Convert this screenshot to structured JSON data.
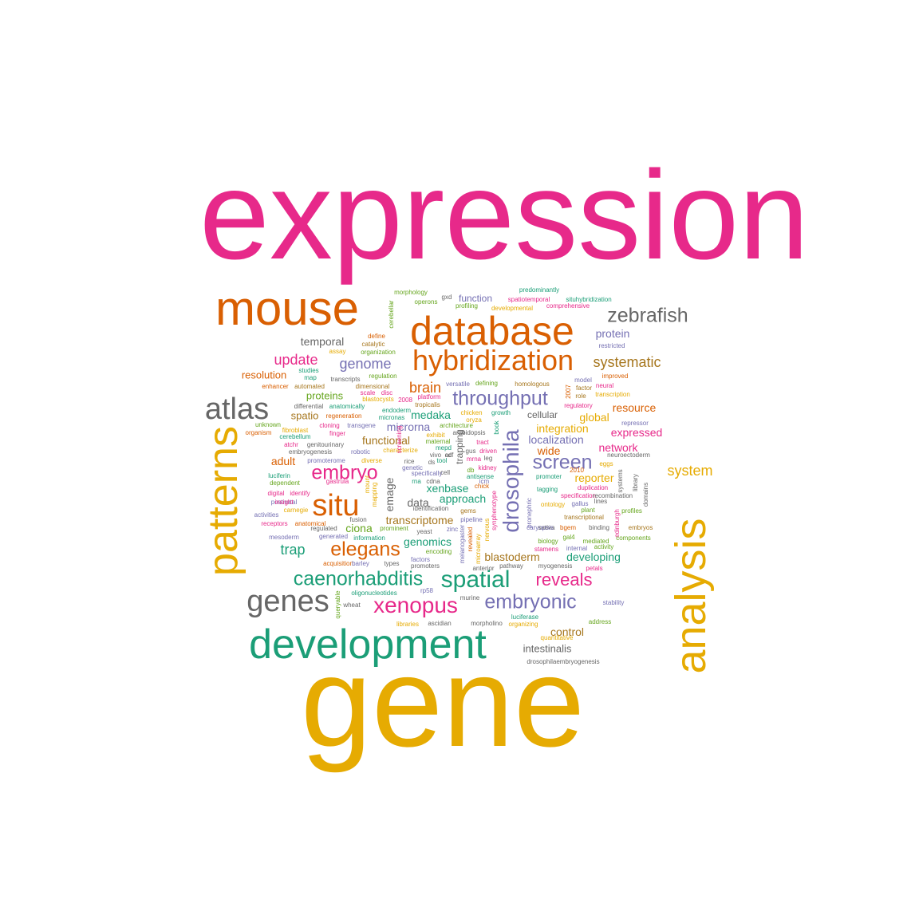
{
  "colors": {
    "magenta": "#e7298a",
    "orange": "#d95f02",
    "gold": "#e6ab02",
    "green": "#1b9e77",
    "purple": "#7570b3",
    "gray": "#666666",
    "olive": "#66a61e",
    "brown": "#a6761d"
  },
  "words": [
    {
      "text": "expression",
      "color": "magenta"
    },
    {
      "text": "gene",
      "color": "gold"
    },
    {
      "text": "mouse",
      "color": "orange"
    },
    {
      "text": "database",
      "color": "orange"
    },
    {
      "text": "hybridization",
      "color": "orange"
    },
    {
      "text": "zebrafish",
      "color": "gray"
    },
    {
      "text": "patterns",
      "color": "gold"
    },
    {
      "text": "analysis",
      "color": "gold"
    },
    {
      "text": "development",
      "color": "green"
    },
    {
      "text": "atlas",
      "color": "gray"
    },
    {
      "text": "situ",
      "color": "orange"
    },
    {
      "text": "genes",
      "color": "gray"
    },
    {
      "text": "xenopus",
      "color": "magenta"
    },
    {
      "text": "spatial",
      "color": "green"
    },
    {
      "text": "caenorhabditis",
      "color": "green"
    },
    {
      "text": "embryonic",
      "color": "purple"
    },
    {
      "text": "drosophila",
      "color": "purple"
    },
    {
      "text": "throughput",
      "color": "purple"
    },
    {
      "text": "screen",
      "color": "purple"
    },
    {
      "text": "embryo",
      "color": "magenta"
    },
    {
      "text": "elegans",
      "color": "orange"
    },
    {
      "text": "reveals",
      "color": "magenta"
    },
    {
      "text": "genome",
      "color": "purple"
    },
    {
      "text": "update",
      "color": "magenta"
    },
    {
      "text": "systematic",
      "color": "brown"
    },
    {
      "text": "brain",
      "color": "orange"
    },
    {
      "text": "trap",
      "color": "green"
    },
    {
      "text": "system",
      "color": "gold"
    },
    {
      "text": "resource",
      "color": "orange"
    },
    {
      "text": "expressed",
      "color": "magenta"
    },
    {
      "text": "protein",
      "color": "purple"
    },
    {
      "text": "temporal",
      "color": "gray"
    },
    {
      "text": "resolution",
      "color": "orange"
    },
    {
      "text": "proteins",
      "color": "olive"
    },
    {
      "text": "spatio",
      "color": "brown"
    },
    {
      "text": "medaka",
      "color": "green"
    },
    {
      "text": "microrna",
      "color": "purple"
    },
    {
      "text": "functional",
      "color": "brown"
    },
    {
      "text": "adult",
      "color": "orange"
    },
    {
      "text": "emage",
      "color": "gray"
    },
    {
      "text": "localization",
      "color": "purple"
    },
    {
      "text": "integration",
      "color": "gold"
    },
    {
      "text": "global",
      "color": "gold"
    },
    {
      "text": "network",
      "color": "magenta"
    },
    {
      "text": "wide",
      "color": "orange"
    },
    {
      "text": "reporter",
      "color": "gold"
    },
    {
      "text": "xenbase",
      "color": "green"
    },
    {
      "text": "approach",
      "color": "green"
    },
    {
      "text": "data",
      "color": "gray"
    },
    {
      "text": "transcriptome",
      "color": "brown"
    },
    {
      "text": "ciona",
      "color": "olive"
    },
    {
      "text": "genomics",
      "color": "green"
    },
    {
      "text": "blastoderm",
      "color": "brown"
    },
    {
      "text": "developing",
      "color": "green"
    },
    {
      "text": "control",
      "color": "brown"
    },
    {
      "text": "intestinalis",
      "color": "gray"
    },
    {
      "text": "function",
      "color": "purple"
    },
    {
      "text": "cellular",
      "color": "gray"
    },
    {
      "text": "trapping",
      "color": "gray"
    },
    {
      "text": "morphology",
      "color": "olive"
    },
    {
      "text": "gxd",
      "color": "gray"
    },
    {
      "text": "predominantly",
      "color": "green"
    },
    {
      "text": "operons",
      "color": "olive"
    },
    {
      "text": "profiling",
      "color": "olive"
    },
    {
      "text": "spatiotemporal",
      "color": "magenta"
    },
    {
      "text": "situhybridization",
      "color": "green"
    },
    {
      "text": "developmental",
      "color": "gold"
    },
    {
      "text": "comprehensive",
      "color": "magenta"
    },
    {
      "text": "cerebellar",
      "color": "olive"
    },
    {
      "text": "define",
      "color": "orange"
    },
    {
      "text": "catalytic",
      "color": "brown"
    },
    {
      "text": "organization",
      "color": "olive"
    },
    {
      "text": "assay",
      "color": "gold"
    },
    {
      "text": "restricted",
      "color": "purple"
    },
    {
      "text": "studies",
      "color": "green"
    },
    {
      "text": "map",
      "color": "green"
    },
    {
      "text": "transcripts",
      "color": "gray"
    },
    {
      "text": "regulation",
      "color": "olive"
    },
    {
      "text": "enhancer",
      "color": "orange"
    },
    {
      "text": "automated",
      "color": "brown"
    },
    {
      "text": "dimensional",
      "color": "brown"
    },
    {
      "text": "scale",
      "color": "magenta"
    },
    {
      "text": "disc",
      "color": "magenta"
    },
    {
      "text": "versatile",
      "color": "purple"
    },
    {
      "text": "defining",
      "color": "olive"
    },
    {
      "text": "homologous",
      "color": "brown"
    },
    {
      "text": "model",
      "color": "purple"
    },
    {
      "text": "improved",
      "color": "orange"
    },
    {
      "text": "factor",
      "color": "brown"
    },
    {
      "text": "neural",
      "color": "magenta"
    },
    {
      "text": "role",
      "color": "brown"
    },
    {
      "text": "transcription",
      "color": "gold"
    },
    {
      "text": "2007",
      "color": "orange"
    },
    {
      "text": "regulatory",
      "color": "magenta"
    },
    {
      "text": "differential",
      "color": "gray"
    },
    {
      "text": "anatomically",
      "color": "green"
    },
    {
      "text": "blastocysts",
      "color": "gold"
    },
    {
      "text": "2008",
      "color": "magenta"
    },
    {
      "text": "platform",
      "color": "magenta"
    },
    {
      "text": "tropicalis",
      "color": "brown"
    },
    {
      "text": "endoderm",
      "color": "green"
    },
    {
      "text": "regeneration",
      "color": "orange"
    },
    {
      "text": "micronas",
      "color": "green"
    },
    {
      "text": "chicken",
      "color": "gold"
    },
    {
      "text": "oryza",
      "color": "gold"
    },
    {
      "text": "growth",
      "color": "green"
    },
    {
      "text": "book",
      "color": "green"
    },
    {
      "text": "repressor",
      "color": "purple"
    },
    {
      "text": "unknown",
      "color": "olive"
    },
    {
      "text": "organism",
      "color": "orange"
    },
    {
      "text": "fibroblast",
      "color": "gold"
    },
    {
      "text": "cerebellum",
      "color": "green"
    },
    {
      "text": "cloning",
      "color": "magenta"
    },
    {
      "text": "finger",
      "color": "magenta"
    },
    {
      "text": "transgene",
      "color": "purple"
    },
    {
      "text": "architecture",
      "color": "olive"
    },
    {
      "text": "exhibit",
      "color": "gold"
    },
    {
      "text": "maternal",
      "color": "olive"
    },
    {
      "text": "arabidopsis",
      "color": "gray"
    },
    {
      "text": "atchr",
      "color": "magenta"
    },
    {
      "text": "genitourinary",
      "color": "gray"
    },
    {
      "text": "embryogenesis",
      "color": "gray"
    },
    {
      "text": "robotic",
      "color": "purple"
    },
    {
      "text": "characterize",
      "color": "gold"
    },
    {
      "text": "tract",
      "color": "magenta"
    },
    {
      "text": "gus",
      "color": "gray"
    },
    {
      "text": "driven",
      "color": "magenta"
    },
    {
      "text": "leg",
      "color": "gray"
    },
    {
      "text": "promoterome",
      "color": "purple"
    },
    {
      "text": "diverse",
      "color": "gold"
    },
    {
      "text": "rice",
      "color": "gray"
    },
    {
      "text": "vivo",
      "color": "gray"
    },
    {
      "text": "cdf",
      "color": "gray"
    },
    {
      "text": "mrna",
      "color": "magenta"
    },
    {
      "text": "neuroectoderm",
      "color": "gray"
    },
    {
      "text": "eggs",
      "color": "gold"
    },
    {
      "text": "luciferin",
      "color": "green"
    },
    {
      "text": "dependent",
      "color": "olive"
    },
    {
      "text": "gastrula",
      "color": "magenta"
    },
    {
      "text": "ds",
      "color": "gray"
    },
    {
      "text": "tool",
      "color": "green"
    },
    {
      "text": "genetic",
      "color": "purple"
    },
    {
      "text": "specifically",
      "color": "purple"
    },
    {
      "text": "cell",
      "color": "gray"
    },
    {
      "text": "db",
      "color": "olive"
    },
    {
      "text": "kidney",
      "color": "magenta"
    },
    {
      "text": "promoter",
      "color": "green"
    },
    {
      "text": "duplication",
      "color": "magenta"
    },
    {
      "text": "systems",
      "color": "gray"
    },
    {
      "text": "library",
      "color": "gray"
    },
    {
      "text": "domains",
      "color": "gray"
    },
    {
      "text": "digital",
      "color": "magenta"
    },
    {
      "text": "identify",
      "color": "magenta"
    },
    {
      "text": "mapping",
      "color": "gold"
    },
    {
      "text": "mount",
      "color": "gold"
    },
    {
      "text": "rna",
      "color": "green"
    },
    {
      "text": "cdna",
      "color": "gray"
    },
    {
      "text": "antisense",
      "color": "green"
    },
    {
      "text": "chick",
      "color": "orange"
    },
    {
      "text": "icm",
      "color": "purple"
    },
    {
      "text": "tagging",
      "color": "green"
    },
    {
      "text": "specification",
      "color": "magenta"
    },
    {
      "text": "recombination",
      "color": "gray"
    },
    {
      "text": "postnatal",
      "color": "purple"
    },
    {
      "text": "insight",
      "color": "magenta"
    },
    {
      "text": "ontology",
      "color": "gold"
    },
    {
      "text": "gallus",
      "color": "purple"
    },
    {
      "text": "plant",
      "color": "olive"
    },
    {
      "text": "lines",
      "color": "gray"
    },
    {
      "text": "profiles",
      "color": "olive"
    },
    {
      "text": "carnegie",
      "color": "gold"
    },
    {
      "text": "identification",
      "color": "gray"
    },
    {
      "text": "gems",
      "color": "brown"
    },
    {
      "text": "pronephric",
      "color": "purple"
    },
    {
      "text": "activities",
      "color": "purple"
    },
    {
      "text": "receptors",
      "color": "magenta"
    },
    {
      "text": "anatomical",
      "color": "orange"
    },
    {
      "text": "fusion",
      "color": "gray"
    },
    {
      "text": "regulated",
      "color": "gray"
    },
    {
      "text": "pipeline",
      "color": "purple"
    },
    {
      "text": "synphenotype",
      "color": "magenta"
    },
    {
      "text": "transcriptional",
      "color": "brown"
    },
    {
      "text": "binding",
      "color": "gray"
    },
    {
      "text": "edinburgh",
      "color": "magenta"
    },
    {
      "text": "sativa",
      "color": "gray"
    },
    {
      "text": "caryopsis",
      "color": "purple"
    },
    {
      "text": "bgem",
      "color": "orange"
    },
    {
      "text": "embryos",
      "color": "brown"
    },
    {
      "text": "gal4",
      "color": "olive"
    },
    {
      "text": "yeast",
      "color": "gray"
    },
    {
      "text": "zinc",
      "color": "purple"
    },
    {
      "text": "revealed",
      "color": "orange"
    },
    {
      "text": "nervous",
      "color": "gold"
    },
    {
      "text": "prominent",
      "color": "olive"
    },
    {
      "text": "mesoderm",
      "color": "purple"
    },
    {
      "text": "generated",
      "color": "purple"
    },
    {
      "text": "information",
      "color": "green"
    },
    {
      "text": "biology",
      "color": "olive"
    },
    {
      "text": "mediated",
      "color": "olive"
    },
    {
      "text": "components",
      "color": "olive"
    },
    {
      "text": "stamens",
      "color": "magenta"
    },
    {
      "text": "internal",
      "color": "purple"
    },
    {
      "text": "activity",
      "color": "olive"
    },
    {
      "text": "encoding",
      "color": "olive"
    },
    {
      "text": "melanogaster",
      "color": "purple"
    },
    {
      "text": "microarray",
      "color": "gold"
    },
    {
      "text": "acquisition",
      "color": "orange"
    },
    {
      "text": "barley",
      "color": "purple"
    },
    {
      "text": "types",
      "color": "gray"
    },
    {
      "text": "factors",
      "color": "purple"
    },
    {
      "text": "promoters",
      "color": "gray"
    },
    {
      "text": "pathway",
      "color": "gray"
    },
    {
      "text": "myogenesis",
      "color": "gray"
    },
    {
      "text": "petals",
      "color": "magenta"
    },
    {
      "text": "anterior",
      "color": "gray"
    },
    {
      "text": "rp58",
      "color": "purple"
    },
    {
      "text": "oligonucleotides",
      "color": "green"
    },
    {
      "text": "murine",
      "color": "gray"
    },
    {
      "text": "wheat",
      "color": "gray"
    },
    {
      "text": "stability",
      "color": "purple"
    },
    {
      "text": "queryable",
      "color": "olive"
    },
    {
      "text": "luciferase",
      "color": "green"
    },
    {
      "text": "libraries",
      "color": "gold"
    },
    {
      "text": "ascidian",
      "color": "gray"
    },
    {
      "text": "morpholino",
      "color": "gray"
    },
    {
      "text": "organizing",
      "color": "gold"
    },
    {
      "text": "address",
      "color": "olive"
    },
    {
      "text": "quantitative",
      "color": "gold"
    },
    {
      "text": "drosophilaembryogenesis",
      "color": "gray"
    },
    {
      "text": "2010",
      "color": "orange"
    },
    {
      "text": "screening",
      "color": "magenta"
    },
    {
      "text": "ac",
      "color": "gray"
    },
    {
      "text": "mepd",
      "color": "green"
    }
  ]
}
